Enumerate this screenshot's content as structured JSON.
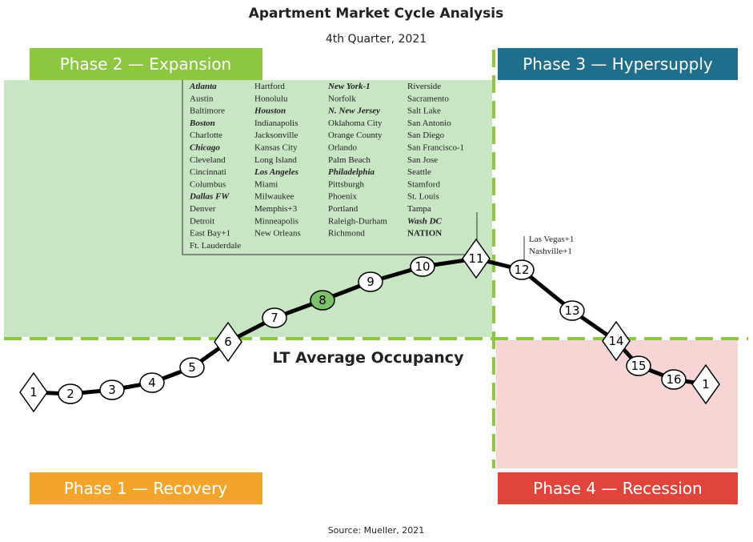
{
  "header": {
    "title": "Apartment Market Cycle Analysis",
    "subtitle": "4th Quarter, 2021"
  },
  "phases": [
    "Phase 2 — Expansion",
    "Phase 3 — Hypersupply",
    "Phase 1 — Recovery",
    "Phase 4 — Recession"
  ],
  "occupancy_label": "LT Average Occupancy",
  "source": "Source: Mueller, 2021",
  "nodes": [
    "1",
    "2",
    "3",
    "4",
    "5",
    "6",
    "7",
    "8",
    "9",
    "10",
    "11",
    "12",
    "13",
    "14",
    "15",
    "16",
    "1"
  ],
  "annotation": [
    "Las Vegas+1",
    "Nashville+1"
  ],
  "city_columns": [
    [
      {
        "name": "Atlanta",
        "emphasis": true
      },
      {
        "name": "Austin"
      },
      {
        "name": "Baltimore"
      },
      {
        "name": "Boston",
        "emphasis": true
      },
      {
        "name": "Charlotte"
      },
      {
        "name": "Chicago",
        "emphasis": true
      },
      {
        "name": "Cleveland"
      },
      {
        "name": "Cincinnati"
      },
      {
        "name": "Columbus"
      },
      {
        "name": "Dallas FW",
        "emphasis": true
      },
      {
        "name": "Denver"
      },
      {
        "name": "Detroit"
      },
      {
        "name": "East Bay+1"
      },
      {
        "name": "Ft. Lauderdale"
      }
    ],
    [
      {
        "name": "Hartford"
      },
      {
        "name": "Honolulu"
      },
      {
        "name": "Houston",
        "emphasis": true
      },
      {
        "name": "Indianapolis"
      },
      {
        "name": "Jacksonville"
      },
      {
        "name": "Kansas City"
      },
      {
        "name": "Long Island"
      },
      {
        "name": "Los Angeles",
        "emphasis": true
      },
      {
        "name": "Miami"
      },
      {
        "name": "Milwaukee"
      },
      {
        "name": "Memphis+3"
      },
      {
        "name": "Minneapolis"
      },
      {
        "name": "New Orleans"
      }
    ],
    [
      {
        "name": "New York-1",
        "emphasis": true
      },
      {
        "name": "Norfolk"
      },
      {
        "name": "N. New Jersey",
        "emphasis": true
      },
      {
        "name": "Oklahoma City"
      },
      {
        "name": "Orange County"
      },
      {
        "name": "Orlando"
      },
      {
        "name": "Palm Beach"
      },
      {
        "name": "Philadelphia",
        "emphasis": true
      },
      {
        "name": "Pittsburgh"
      },
      {
        "name": "Phoenix"
      },
      {
        "name": "Portland"
      },
      {
        "name": "Raleigh-Durham"
      },
      {
        "name": "Richmond"
      }
    ],
    [
      {
        "name": "Riverside"
      },
      {
        "name": "Sacramento"
      },
      {
        "name": "Salt Lake"
      },
      {
        "name": "San Antonio"
      },
      {
        "name": "San Diego"
      },
      {
        "name": "San Francisco-1"
      },
      {
        "name": "San Jose"
      },
      {
        "name": "Seattle"
      },
      {
        "name": "Stamford"
      },
      {
        "name": "St. Louis"
      },
      {
        "name": "Tampa"
      },
      {
        "name": "Wash DC",
        "emphasis": true
      },
      {
        "name": "NATION",
        "bold": true
      }
    ]
  ]
}
